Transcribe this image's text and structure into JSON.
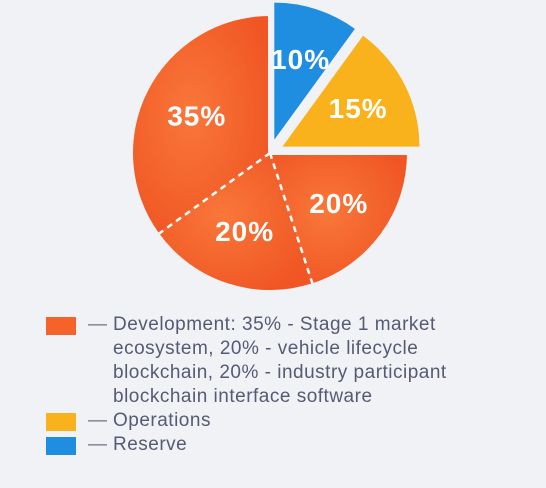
{
  "chart_data": {
    "type": "pie",
    "title": "",
    "slices": [
      {
        "label": "35%",
        "value": 35,
        "category": "Development",
        "color": "#f5622a",
        "exploded": false
      },
      {
        "label": "20%",
        "value": 20,
        "category": "Development",
        "color": "#f5622a",
        "exploded": false
      },
      {
        "label": "20%",
        "value": 20,
        "category": "Development",
        "color": "#f5622a",
        "exploded": false
      },
      {
        "label": "15%",
        "value": 15,
        "category": "Operations",
        "color": "#f9b21b",
        "exploded": true
      },
      {
        "label": "10%",
        "value": 10,
        "category": "Reserve",
        "color": "#1f8de0",
        "exploded": true
      }
    ],
    "legend": [
      {
        "name": "Development",
        "dash": "—",
        "text": "Development: 35% - Stage 1 market ecosystem, 20% - vehicle lifecycle blockchain, 20% - industry participant blockchain interface software",
        "color": "#f5622a"
      },
      {
        "name": "Operations",
        "dash": "—",
        "text": "Operations",
        "color": "#f9b21b"
      },
      {
        "name": "Reserve",
        "dash": "—",
        "text": "Reserve",
        "color": "#1f8de0"
      }
    ],
    "legend_position": "bottom"
  },
  "colors": {
    "background": "#f1f2f6",
    "development": "#f5622a",
    "operations": "#f9b21b",
    "reserve": "#1f8de0",
    "legend_text": "#555a75"
  }
}
